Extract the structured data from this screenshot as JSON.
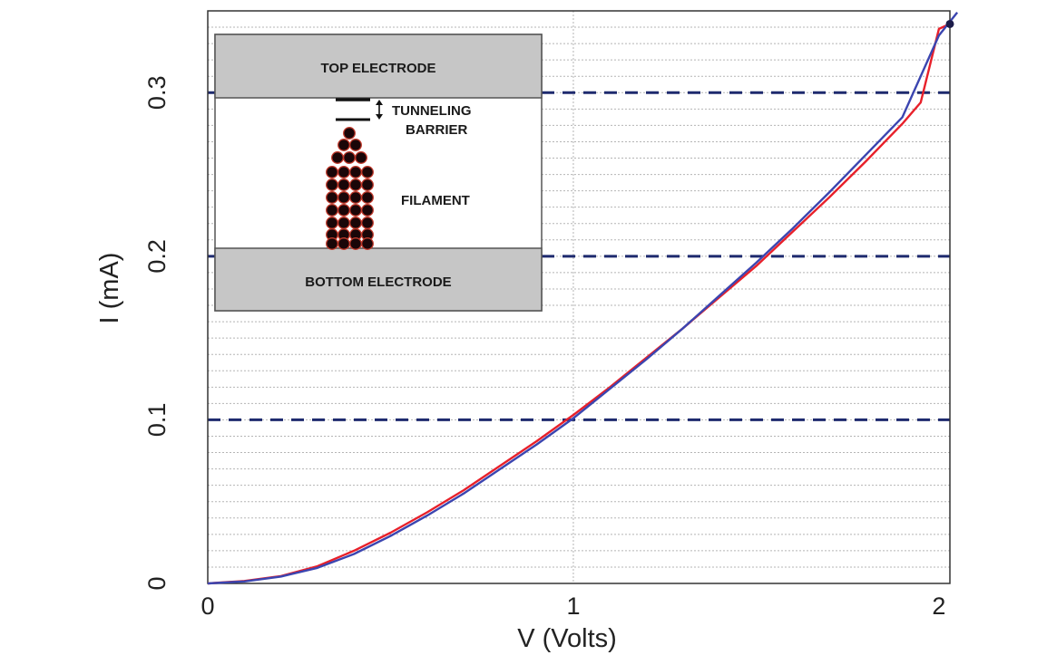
{
  "chart_data": {
    "type": "line",
    "xlabel": "V (Volts)",
    "ylabel": "I (mA)",
    "xlim": [
      0,
      2.03
    ],
    "ylim": [
      0,
      0.35
    ],
    "x_ticks": [
      "0",
      "1",
      "2"
    ],
    "y_ticks": [
      "0",
      "0.1",
      "0.2",
      "0.3"
    ],
    "grid": true,
    "colors": {
      "series_a": "#e8202a",
      "series_b": "#3b45b0",
      "reference": "#1e2a6e",
      "grid": "#b5b5b5",
      "electrode": "#c6c6c6",
      "atom": "#1a0608",
      "atom_edge": "#c0392b"
    },
    "series": [
      {
        "color": "#e8202a",
        "x": [
          0,
          0.1,
          0.2,
          0.3,
          0.4,
          0.5,
          0.6,
          0.7,
          0.8,
          0.9,
          1.0,
          1.1,
          1.2,
          1.3,
          1.4,
          1.5,
          1.6,
          1.7,
          1.8,
          1.9,
          1.95,
          2.0,
          2.03
        ],
        "y": [
          0,
          0.0015,
          0.0045,
          0.0105,
          0.02,
          0.031,
          0.0435,
          0.057,
          0.072,
          0.087,
          0.103,
          0.12,
          0.138,
          0.156,
          0.175,
          0.194,
          0.215,
          0.236,
          0.258,
          0.281,
          0.294,
          0.339,
          0.342
        ]
      },
      {
        "color": "#3b45b0",
        "x": [
          0,
          0.1,
          0.2,
          0.3,
          0.4,
          0.5,
          0.6,
          0.7,
          0.8,
          0.9,
          1.0,
          1.1,
          1.2,
          1.3,
          1.4,
          1.5,
          1.6,
          1.7,
          1.8,
          1.9,
          2.0,
          2.05
        ],
        "y": [
          0,
          0.0012,
          0.0042,
          0.0095,
          0.018,
          0.029,
          0.0415,
          0.055,
          0.07,
          0.085,
          0.101,
          0.119,
          0.137,
          0.156,
          0.176,
          0.196,
          0.217,
          0.239,
          0.262,
          0.285,
          0.335,
          0.349
        ]
      }
    ],
    "reference_lines_y": [
      0.1,
      0.2,
      0.3
    ],
    "endpoint_marker": {
      "x": 2.03,
      "y": 0.342
    }
  },
  "inset": {
    "top_electrode": "TOP ELECTRODE",
    "bottom_electrode": "BOTTOM ELECTRODE",
    "barrier_line1": "TUNNELING",
    "barrier_line2": "BARRIER",
    "filament": "FILAMENT"
  }
}
